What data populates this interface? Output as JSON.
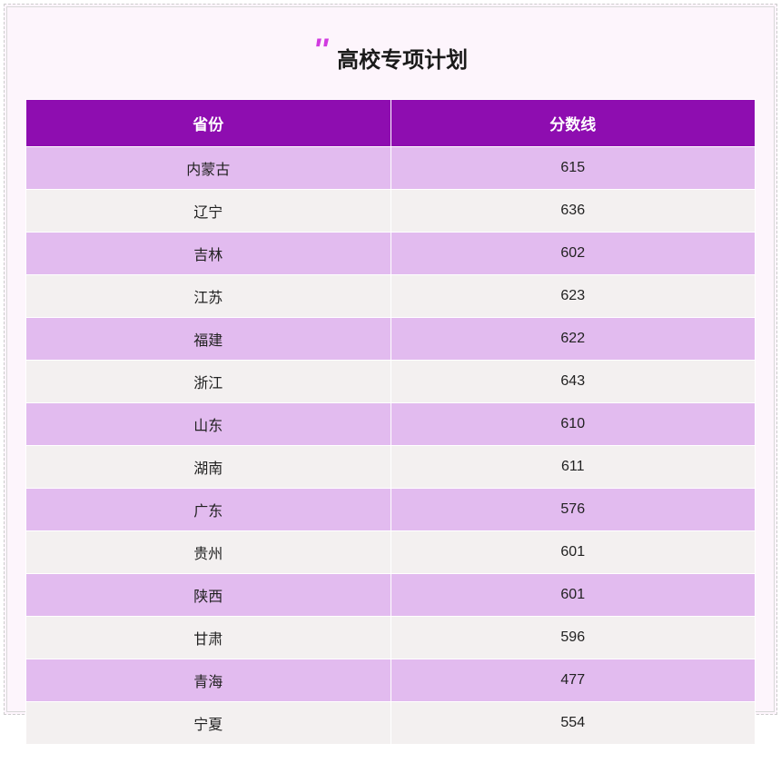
{
  "title": {
    "quote_mark": "''",
    "text": "高校专项计划"
  },
  "table": {
    "headers": {
      "province": "省份",
      "score": "分数线"
    },
    "rows": [
      {
        "province": "内蒙古",
        "score": "615"
      },
      {
        "province": "辽宁",
        "score": "636"
      },
      {
        "province": "吉林",
        "score": "602"
      },
      {
        "province": "江苏",
        "score": "623"
      },
      {
        "province": "福建",
        "score": "622"
      },
      {
        "province": "浙江",
        "score": "643"
      },
      {
        "province": "山东",
        "score": "610"
      },
      {
        "province": "湖南",
        "score": "611"
      },
      {
        "province": "广东",
        "score": "576"
      },
      {
        "province": "贵州",
        "score": "601"
      },
      {
        "province": "陕西",
        "score": "601"
      },
      {
        "province": "甘肃",
        "score": "596"
      },
      {
        "province": "青海",
        "score": "477"
      },
      {
        "province": "宁夏",
        "score": "554"
      }
    ]
  },
  "colors": {
    "header_bg": "#8e0db0",
    "header_text": "#ffffff",
    "row_odd_bg": "#e2bbef",
    "row_even_bg": "#f3f0f0",
    "page_bg": "#fdf5fc",
    "quote_color": "#d13be0",
    "text_color": "#222222",
    "border_color": "#ffffff",
    "frame_border": "#d8d8d8"
  },
  "typography": {
    "title_fontsize": 24,
    "header_fontsize": 17,
    "cell_fontsize": 16
  }
}
